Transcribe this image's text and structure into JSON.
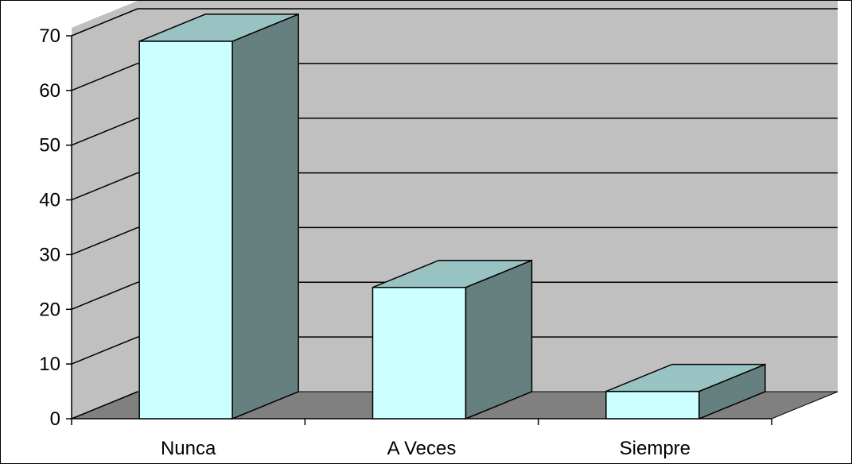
{
  "chart_data": {
    "type": "bar",
    "style": "3d-column",
    "categories": [
      "Nunca",
      "A Veces",
      "Siempre"
    ],
    "values": [
      69,
      24,
      5
    ],
    "ylim": [
      0,
      70
    ],
    "yticks": [
      "0",
      "10",
      "20",
      "30",
      "40",
      "50",
      "60",
      "70"
    ],
    "grid": true,
    "legend": "none",
    "colors": {
      "bar_front": "#ccffff",
      "bar_top": "#99c2c2",
      "bar_side": "#668080",
      "wall": "#c0c0c0",
      "floor": "#808080",
      "grid": "#000000"
    }
  }
}
